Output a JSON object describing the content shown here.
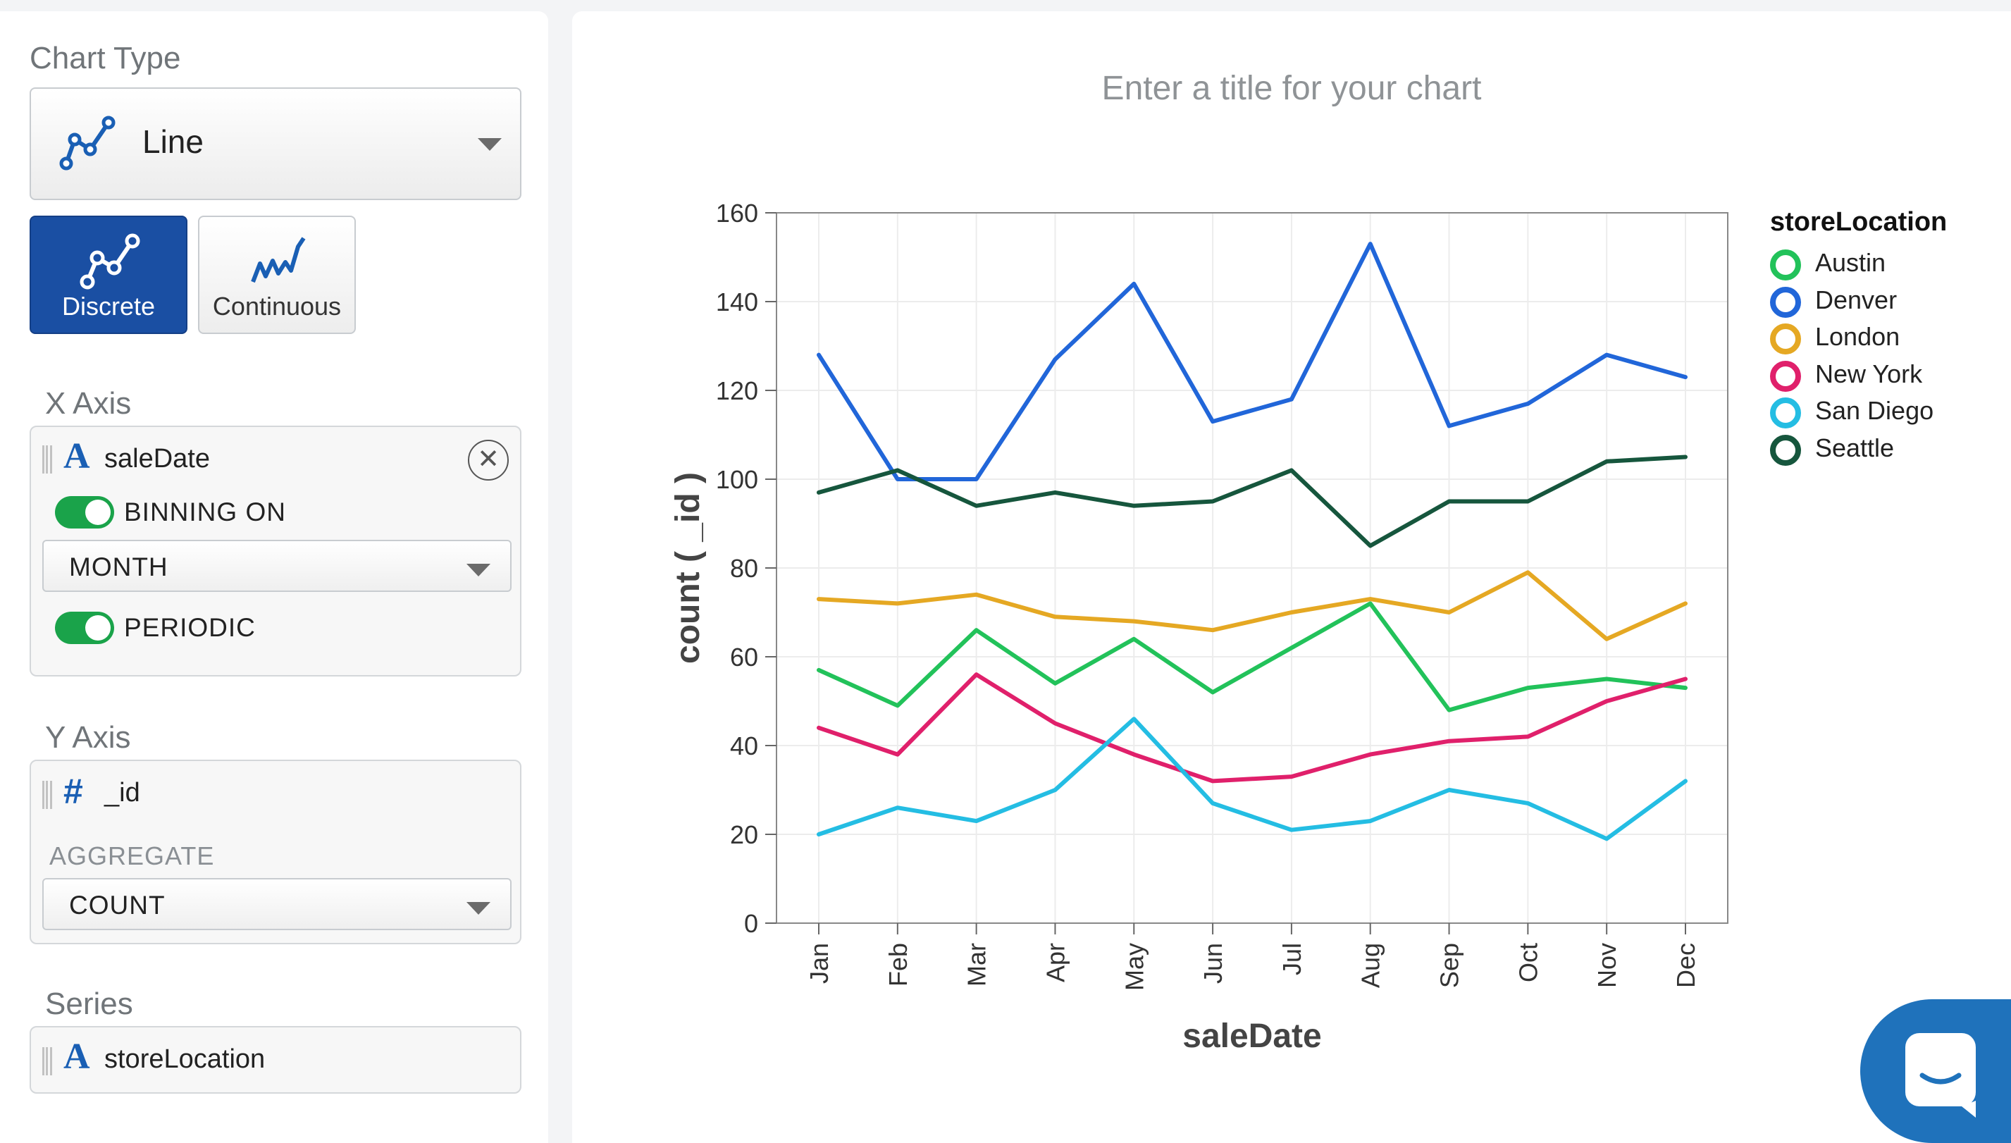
{
  "sidebar": {
    "chart_type_title": "Chart Type",
    "chart_type_value": "Line",
    "mode_discrete": "Discrete",
    "mode_continuous": "Continuous",
    "x_axis": {
      "title": "X Axis",
      "field_type": "A",
      "field": "saleDate",
      "binning_label": "BINNING ON",
      "binning_value": "MONTH",
      "periodic_label": "PERIODIC"
    },
    "y_axis": {
      "title": "Y Axis",
      "field_type": "#",
      "field": "_id",
      "aggregate_label": "AGGREGATE",
      "aggregate_value": "COUNT"
    },
    "series": {
      "title": "Series",
      "field_type": "A",
      "field": "storeLocation"
    }
  },
  "chart_panel": {
    "title_placeholder": "Enter a title for your chart",
    "legend_title": "storeLocation"
  },
  "chart_data": {
    "type": "line",
    "title": "",
    "xlabel": "saleDate",
    "ylabel": "count ( _id )",
    "ylim": [
      0,
      160
    ],
    "yticks": [
      0,
      20,
      40,
      60,
      80,
      100,
      120,
      140,
      160
    ],
    "grid": true,
    "legend_position": "right",
    "categories": [
      "Jan",
      "Feb",
      "Mar",
      "Apr",
      "May",
      "Jun",
      "Jul",
      "Aug",
      "Sep",
      "Oct",
      "Nov",
      "Dec"
    ],
    "series": [
      {
        "name": "Austin",
        "color": "#22c25a",
        "values": [
          57,
          49,
          66,
          54,
          64,
          52,
          62,
          72,
          48,
          53,
          55,
          53
        ]
      },
      {
        "name": "Denver",
        "color": "#2166d9",
        "values": [
          128,
          100,
          100,
          127,
          144,
          113,
          118,
          153,
          112,
          117,
          128,
          123
        ]
      },
      {
        "name": "London",
        "color": "#e5a823",
        "values": [
          73,
          72,
          74,
          69,
          68,
          66,
          70,
          73,
          70,
          79,
          64,
          72
        ]
      },
      {
        "name": "New York",
        "color": "#e0206b",
        "values": [
          44,
          38,
          56,
          45,
          38,
          32,
          33,
          38,
          41,
          42,
          50,
          55
        ]
      },
      {
        "name": "San Diego",
        "color": "#24bde3",
        "values": [
          20,
          26,
          23,
          30,
          46,
          27,
          21,
          23,
          30,
          27,
          19,
          32
        ]
      },
      {
        "name": "Seattle",
        "color": "#16563d",
        "values": [
          97,
          102,
          94,
          97,
          94,
          95,
          102,
          85,
          95,
          95,
          104,
          105
        ]
      }
    ]
  }
}
